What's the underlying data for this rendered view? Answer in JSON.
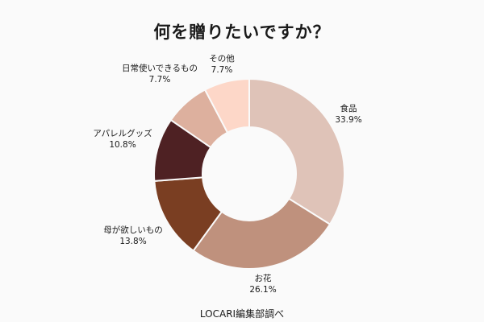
{
  "chart_data": {
    "type": "pie",
    "variant": "donut",
    "title": "何を贈りたいですか？",
    "source": "LOCARI編集部調べ",
    "slices": [
      {
        "label": "食品",
        "value": 33.9,
        "value_label": "33.9%",
        "color": "#dfc3b8"
      },
      {
        "label": "お花",
        "value": 26.1,
        "value_label": "26.1%",
        "color": "#bf917d"
      },
      {
        "label": "母が欲しいもの",
        "value": 13.8,
        "value_label": "13.8%",
        "color": "#7a3e22"
      },
      {
        "label": "アパレルグッズ",
        "value": 10.8,
        "value_label": "10.8%",
        "color": "#4e2123"
      },
      {
        "label": "日常使いできるもの",
        "value": 7.7,
        "value_label": "7.7%",
        "color": "#ddb09e"
      },
      {
        "label": "その他",
        "value": 7.7,
        "value_label": "7.7%",
        "color": "#fdd7c8"
      }
    ]
  }
}
